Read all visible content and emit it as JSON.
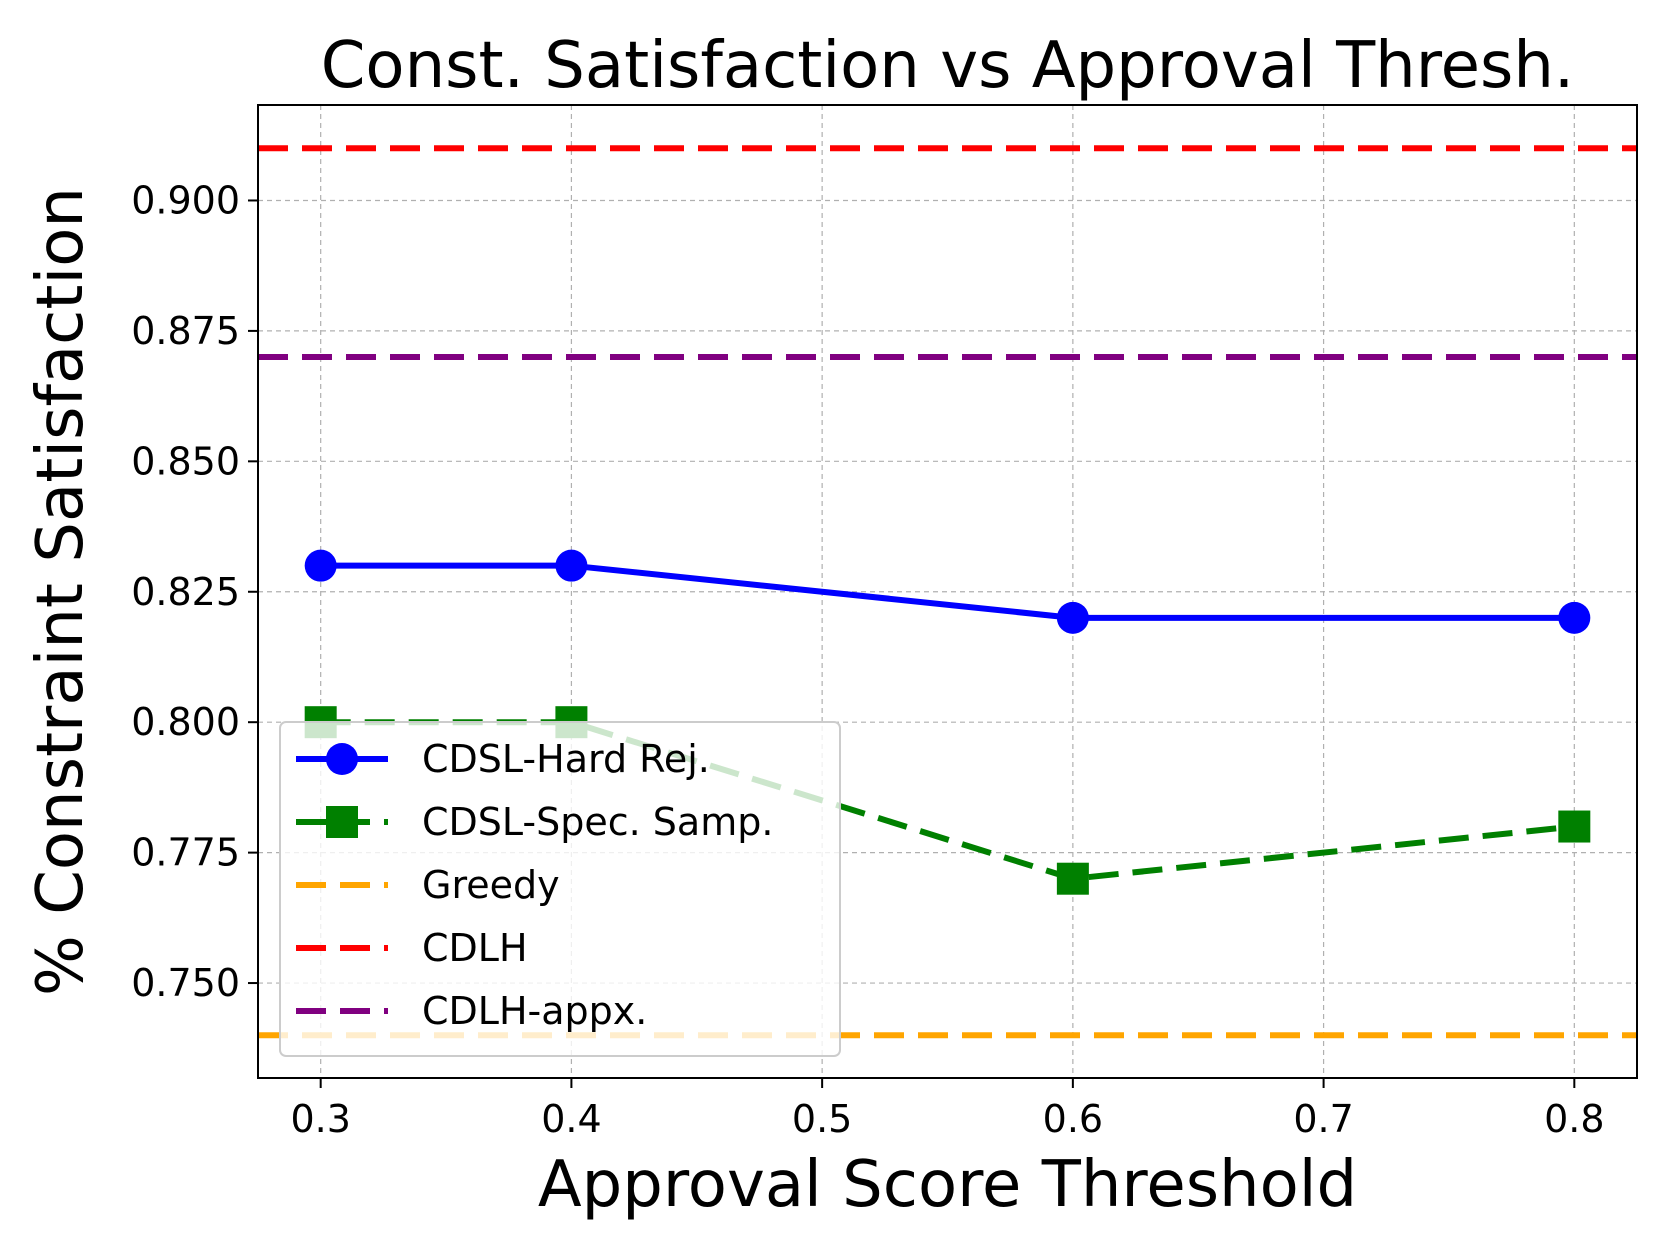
{
  "chart_data": {
    "type": "line",
    "title": "Const. Satisfaction vs Approval Thresh.",
    "xlabel": "Approval Score Threshold",
    "ylabel": "% Constraint Satisfaction",
    "xlim": [
      0.275,
      0.825
    ],
    "ylim": [
      0.7318,
      0.9183
    ],
    "xticks": [
      0.3,
      0.4,
      0.5,
      0.6,
      0.7,
      0.8
    ],
    "xtick_labels": [
      "0.3",
      "0.4",
      "0.5",
      "0.6",
      "0.7",
      "0.8"
    ],
    "yticks": [
      0.75,
      0.775,
      0.8,
      0.825,
      0.85,
      0.875,
      0.9
    ],
    "ytick_labels": [
      "0.750",
      "0.775",
      "0.800",
      "0.825",
      "0.850",
      "0.875",
      "0.900"
    ],
    "grid": true,
    "legend_position": "lower-left",
    "series": [
      {
        "name": "CDSL-Hard Rej.",
        "color": "#0000ff",
        "style": "solid",
        "marker": "circle",
        "x": [
          0.3,
          0.4,
          0.6,
          0.8
        ],
        "values": [
          0.83,
          0.83,
          0.82,
          0.82
        ]
      },
      {
        "name": "CDSL-Spec. Samp.",
        "color": "#008000",
        "style": "dashed",
        "marker": "square",
        "x": [
          0.3,
          0.4,
          0.6,
          0.8
        ],
        "values": [
          0.8,
          0.8,
          0.77,
          0.78
        ]
      }
    ],
    "hlines": [
      {
        "name": "Greedy",
        "color": "#ffa500",
        "value": 0.74
      },
      {
        "name": "CDLH",
        "color": "#ff0000",
        "value": 0.91
      },
      {
        "name": "CDLH-appx.",
        "color": "#800080",
        "value": 0.87
      }
    ],
    "legend_order": [
      "CDSL-Hard Rej.",
      "CDSL-Spec. Samp.",
      "Greedy",
      "CDLH",
      "CDLH-appx."
    ]
  }
}
